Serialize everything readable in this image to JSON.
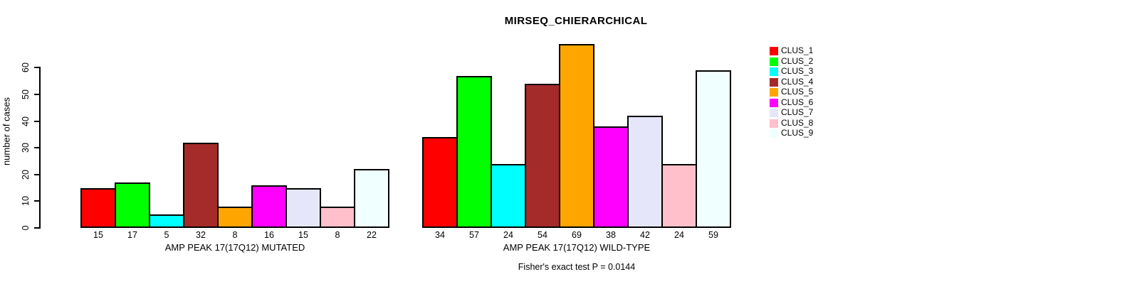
{
  "figure": {
    "title": "MIRSEQ_CHIERARCHICAL",
    "ylabel": "number of cases",
    "annotation": "Fisher's exact test P = 0.0144",
    "background_color": "#FFFFFF",
    "axis_color": "#000000"
  },
  "legend": {
    "position": "right",
    "entries": [
      {
        "label": "CLUS_1",
        "color": "#FF0000"
      },
      {
        "label": "CLUS_2",
        "color": "#00FF00"
      },
      {
        "label": "CLUS_3",
        "color": "#00FFFF"
      },
      {
        "label": "CLUS_4",
        "color": "#A52A2A"
      },
      {
        "label": "CLUS_5",
        "color": "#FFA500"
      },
      {
        "label": "CLUS_6",
        "color": "#FF00FF"
      },
      {
        "label": "CLUS_7",
        "color": "#E6E6FA"
      },
      {
        "label": "CLUS_8",
        "color": "#FFC0CB"
      },
      {
        "label": "CLUS_9",
        "color": "#F0FFFF"
      }
    ]
  },
  "chart_data": [
    {
      "type": "bar",
      "group": "mutated",
      "xlabel": "AMP PEAK 17(17Q12) MUTATED",
      "ylabel": "number of cases",
      "categories": [
        "CLUS_1",
        "CLUS_2",
        "CLUS_3",
        "CLUS_4",
        "CLUS_5",
        "CLUS_6",
        "CLUS_7",
        "CLUS_8",
        "CLUS_9"
      ],
      "values": [
        15,
        17,
        5,
        32,
        8,
        16,
        15,
        8,
        22
      ],
      "bar_value_labels": [
        "15",
        "17",
        "5",
        "32",
        "8",
        "16",
        "15",
        "8",
        "22"
      ],
      "colors": [
        "#FF0000",
        "#00FF00",
        "#00FFFF",
        "#A52A2A",
        "#FFA500",
        "#FF00FF",
        "#E6E6FA",
        "#FFC0CB",
        "#F0FFFF"
      ],
      "ylim": [
        0,
        60
      ],
      "yticks": [
        0,
        10,
        20,
        30,
        40,
        50,
        60
      ],
      "grid": false
    },
    {
      "type": "bar",
      "group": "wild-type",
      "xlabel": "AMP PEAK 17(17Q12) WILD-TYPE",
      "ylabel": "number of cases",
      "categories": [
        "CLUS_1",
        "CLUS_2",
        "CLUS_3",
        "CLUS_4",
        "CLUS_5",
        "CLUS_6",
        "CLUS_7",
        "CLUS_8",
        "CLUS_9"
      ],
      "values": [
        34,
        57,
        24,
        54,
        69,
        38,
        42,
        24,
        59
      ],
      "bar_value_labels": [
        "34",
        "57",
        "24",
        "54",
        "69",
        "38",
        "42",
        "24",
        "59"
      ],
      "colors": [
        "#FF0000",
        "#00FF00",
        "#00FFFF",
        "#A52A2A",
        "#FFA500",
        "#FF00FF",
        "#E6E6FA",
        "#FFC0CB",
        "#F0FFFF"
      ],
      "ylim": [
        0,
        60
      ],
      "yticks": [
        0,
        10,
        20,
        30,
        40,
        50,
        60
      ],
      "grid": false
    }
  ]
}
